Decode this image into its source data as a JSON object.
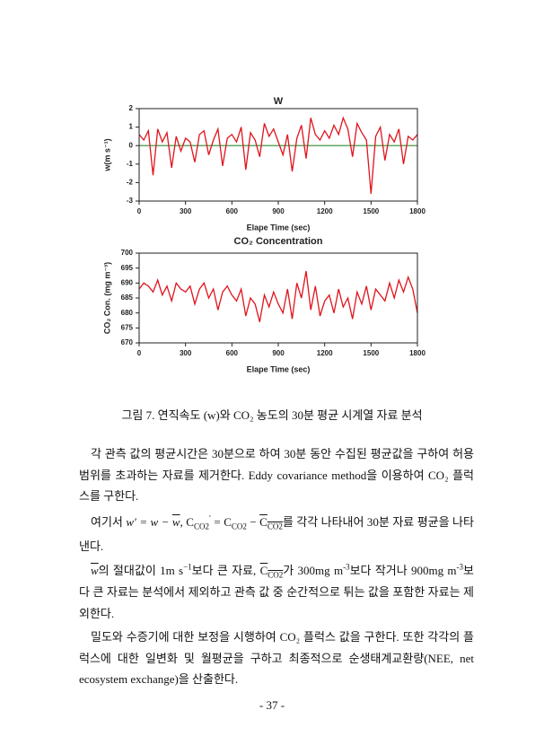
{
  "chart_data": [
    {
      "type": "line",
      "title": "W",
      "xlabel": "Elape Time (sec)",
      "ylabel": "w(m s⁻¹)",
      "color": "#e0141c",
      "hline": {
        "value": 0,
        "color": "#2e8b2e"
      },
      "x": [
        0,
        30,
        60,
        90,
        120,
        150,
        180,
        210,
        240,
        270,
        300,
        330,
        360,
        390,
        420,
        450,
        480,
        510,
        540,
        570,
        600,
        630,
        660,
        690,
        720,
        750,
        780,
        810,
        840,
        870,
        900,
        930,
        960,
        990,
        1020,
        1050,
        1080,
        1110,
        1140,
        1170,
        1200,
        1230,
        1260,
        1290,
        1320,
        1350,
        1380,
        1410,
        1440,
        1470,
        1500,
        1530,
        1560,
        1590,
        1620,
        1650,
        1680,
        1710,
        1740,
        1770,
        1800
      ],
      "values": [
        0.6,
        0.3,
        0.8,
        -1.6,
        0.9,
        0.2,
        0.7,
        -1.2,
        0.5,
        -0.3,
        0.4,
        0.2,
        -0.9,
        0.6,
        0.8,
        -0.5,
        0.3,
        0.9,
        -1.1,
        0.4,
        0.6,
        0.2,
        1.0,
        -1.3,
        0.7,
        0.3,
        -0.6,
        1.2,
        0.5,
        0.9,
        0.2,
        -0.5,
        0.6,
        -1.4,
        0.4,
        1.1,
        -0.7,
        1.5,
        0.6,
        0.3,
        0.8,
        0.4,
        1.1,
        0.6,
        1.5,
        0.9,
        -0.6,
        1.2,
        0.7,
        0.3,
        -2.6,
        0.5,
        1.0,
        -0.8,
        0.6,
        0.2,
        0.9,
        -1.0,
        0.5,
        0.3,
        0.6
      ],
      "xlim": [
        0,
        1800
      ],
      "xticks": [
        0,
        300,
        600,
        900,
        1200,
        1500,
        1800
      ],
      "ylim": [
        -3,
        2
      ],
      "yticks": [
        -3,
        -2,
        -1,
        0,
        1,
        2
      ]
    },
    {
      "type": "line",
      "title": "CO₂ Concentration",
      "xlabel": "Elape Time (sec)",
      "ylabel": "CO₂ Con. (mg m⁻³)",
      "color": "#e0141c",
      "x": [
        0,
        30,
        60,
        90,
        120,
        150,
        180,
        210,
        240,
        270,
        300,
        330,
        360,
        390,
        420,
        450,
        480,
        510,
        540,
        570,
        600,
        630,
        660,
        690,
        720,
        750,
        780,
        810,
        840,
        870,
        900,
        930,
        960,
        990,
        1020,
        1050,
        1080,
        1110,
        1140,
        1170,
        1200,
        1230,
        1260,
        1290,
        1320,
        1350,
        1380,
        1410,
        1440,
        1470,
        1500,
        1530,
        1560,
        1590,
        1620,
        1650,
        1680,
        1710,
        1740,
        1770,
        1800
      ],
      "values": [
        688,
        690,
        689,
        687,
        691,
        686,
        689,
        684,
        690,
        688,
        687,
        689,
        683,
        688,
        690,
        685,
        688,
        681,
        687,
        689,
        686,
        684,
        688,
        679,
        685,
        683,
        677,
        686,
        682,
        687,
        683,
        680,
        688,
        678,
        690,
        685,
        694,
        681,
        689,
        679,
        684,
        686,
        680,
        688,
        682,
        685,
        678,
        687,
        683,
        689,
        681,
        688,
        686,
        684,
        690,
        685,
        691,
        687,
        692,
        688,
        680
      ],
      "xlim": [
        0,
        1800
      ],
      "xticks": [
        0,
        300,
        600,
        900,
        1200,
        1500,
        1800
      ],
      "ylim": [
        670,
        700
      ],
      "yticks": [
        670,
        675,
        680,
        685,
        690,
        695,
        700
      ]
    }
  ],
  "caption": "그림 7. 연직속도 (w)와 CO₂ 농도의 30분 평균 시계열 자료 분석",
  "body": {
    "p1": "각 관측 값의 평균시간은 30분으로 하여 30분 동안 수집된 평균값을 구하여 허용범위를 초과하는 자료를 제거한다. Eddy covariance method을 이용하여 CO₂ 플럭스를 구한다.",
    "p2": [
      "여기서 ",
      "w′ = w − ",
      "w",
      ", ",
      "C",
      "CO2",
      "′",
      " = C",
      "CO2",
      " − ",
      "C",
      "CO2",
      "를 각각 나타내어 30분 자료 평균을 나타낸다."
    ],
    "p3": [
      "w",
      "의 절대값이 1m s",
      "−1",
      "보다 큰 자료, ",
      "C",
      "CO2",
      "가 300mg m",
      "-3",
      "보다 작거나 900mg m",
      "-3",
      "보다 큰 자료는 분석에서 제외하고 관측 값 중 순간적으로 튀는 값을 포함한 자료는 제외한다."
    ],
    "p4": "밀도와 수증기에 대한 보정을 시행하여 CO₂ 플럭스 값을 구한다. 또한 각각의 플럭스에 대한 일변화 및 월평균을 구하고 최종적으로 순생태계교환량(NEE, net ecosystem exchange)을 산출한다."
  },
  "footer": "- 37 -"
}
